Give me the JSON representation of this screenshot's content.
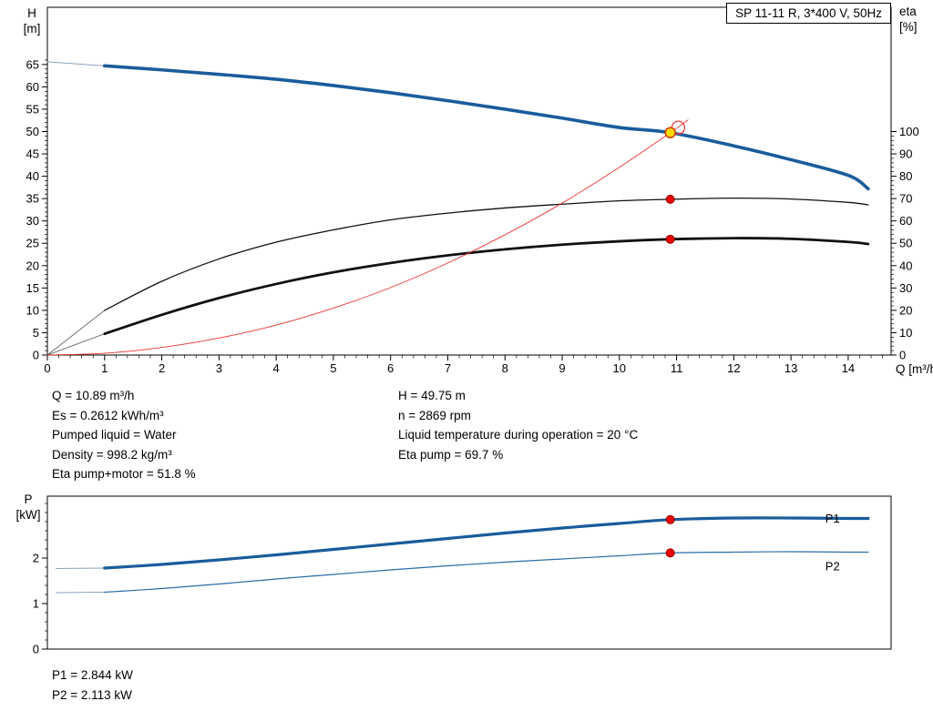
{
  "title_box": "SP 11-11 R, 3*400 V, 50Hz",
  "axis_labels": {
    "h_top": "H",
    "h_bottom": "[m]",
    "eta_top": "eta",
    "eta_bottom": "[%]",
    "q": "Q [m³/h]",
    "p_top": "P",
    "p_bottom": "[kW]"
  },
  "annotations": {
    "left": [
      "Q = 10.89 m³/h",
      "Es = 0.2612 kWh/m³",
      "Pumped liquid = Water",
      "Density = 998.2 kg/m³",
      "Eta pump+motor = 51.8 %"
    ],
    "right": [
      "H = 49.75 m",
      "n = 2869 rpm",
      "Liquid temperature during operation = 20 °C",
      "Eta pump = 69.7 %"
    ]
  },
  "power_annotations": [
    "P1 = 2.844 kW",
    "P2 = 2.113 kW"
  ],
  "colors": {
    "curve_blue": "#1a5c9c",
    "curve_black": "#111111",
    "system_red": "#ee3333",
    "marker_red": "#e80000",
    "duty_yellow": "#ffd800"
  },
  "chart_data": [
    {
      "type": "line",
      "title": "SP 11-11 R, 3*400 V, 50Hz",
      "xlabel": "Q [m³/h]",
      "ylabel_left": "H [m]",
      "ylabel_right": "eta [%]",
      "x_range": [
        0,
        14.75
      ],
      "y_range": [
        0,
        77.8
      ],
      "right_ratio": 2,
      "x_major_ticks": [
        0,
        1,
        2,
        3,
        4,
        5,
        6,
        7,
        8,
        9,
        10,
        11,
        12,
        13,
        14
      ],
      "x_minor_step": 0.2,
      "y_major_ticks": [
        0,
        5,
        10,
        15,
        20,
        25,
        30,
        35,
        40,
        45,
        50,
        55,
        60,
        65
      ],
      "y_minor_step": 1,
      "y_minor_max": 66,
      "right_major_ticks": [
        0,
        10,
        20,
        30,
        40,
        50,
        60,
        70,
        80,
        90,
        100
      ],
      "right_minor_step": 2,
      "duty_point": {
        "q": 10.89,
        "h": 49.75,
        "eta_pump": 69.7,
        "eta_pump_motor": 51.8
      },
      "series": [
        {
          "name": "qh-lead",
          "axis": "left",
          "color": "#8da3b8",
          "width": 1,
          "points": [
            [
              0,
              65.6
            ],
            [
              1,
              64.7
            ]
          ]
        },
        {
          "name": "qh-curve",
          "axis": "left",
          "color": "#1a5c9c",
          "width": 3.6,
          "points": [
            [
              1,
              64.7
            ],
            [
              2,
              63.8
            ],
            [
              3,
              62.8
            ],
            [
              4,
              61.7
            ],
            [
              5,
              60.3
            ],
            [
              6,
              58.7
            ],
            [
              7,
              56.9
            ],
            [
              8,
              55.0
            ],
            [
              9,
              53.0
            ],
            [
              10,
              50.9
            ],
            [
              10.89,
              49.75
            ],
            [
              12,
              46.8
            ],
            [
              13,
              43.7
            ],
            [
              14,
              40.2
            ],
            [
              14.35,
              37.2
            ]
          ]
        },
        {
          "name": "eta-pump-lead",
          "axis": "right",
          "color": "#555555",
          "width": 0.8,
          "points": [
            [
              0,
              0
            ],
            [
              1,
              20
            ]
          ]
        },
        {
          "name": "eta-pump-curve",
          "axis": "right",
          "color": "#111111",
          "width": 1.3,
          "points": [
            [
              1,
              20
            ],
            [
              2,
              33
            ],
            [
              3,
              43
            ],
            [
              4,
              50.5
            ],
            [
              5,
              56
            ],
            [
              6,
              60.5
            ],
            [
              7,
              63.5
            ],
            [
              8,
              65.8
            ],
            [
              9,
              67.5
            ],
            [
              10,
              69
            ],
            [
              10.89,
              69.7
            ],
            [
              12,
              70.2
            ],
            [
              13,
              69.8
            ],
            [
              14,
              68.3
            ],
            [
              14.35,
              67.2
            ]
          ]
        },
        {
          "name": "eta-pump-motor-lead",
          "axis": "right",
          "color": "#555555",
          "width": 0.8,
          "points": [
            [
              0,
              0
            ],
            [
              1,
              9.5
            ]
          ]
        },
        {
          "name": "eta-pump-motor-curve",
          "axis": "right",
          "color": "#111111",
          "width": 2.8,
          "points": [
            [
              1,
              9.5
            ],
            [
              2,
              18
            ],
            [
              3,
              25.5
            ],
            [
              4,
              31.8
            ],
            [
              5,
              37
            ],
            [
              6,
              41.2
            ],
            [
              7,
              44.6
            ],
            [
              8,
              47.3
            ],
            [
              9,
              49.4
            ],
            [
              10,
              50.9
            ],
            [
              10.89,
              51.8
            ],
            [
              12,
              52.3
            ],
            [
              13,
              52.0
            ],
            [
              14,
              50.6
            ],
            [
              14.35,
              49.7
            ]
          ]
        },
        {
          "name": "system-curve",
          "axis": "left",
          "color": "#ee3333",
          "width": 0.9,
          "points": [
            [
              0,
              0
            ],
            [
              1,
              0.4
            ],
            [
              2,
              1.7
            ],
            [
              3,
              3.8
            ],
            [
              4,
              6.7
            ],
            [
              5,
              10.5
            ],
            [
              6,
              15.1
            ],
            [
              7,
              20.6
            ],
            [
              8,
              26.9
            ],
            [
              9,
              34.0
            ],
            [
              10,
              42.0
            ],
            [
              10.89,
              49.75
            ],
            [
              11.2,
              52.6
            ]
          ]
        }
      ],
      "markers": [
        {
          "name": "qh-intersection-ring",
          "axis": "left",
          "q": 11.03,
          "v": 50.9,
          "r": 7,
          "fill": "none",
          "stroke": "#ff2a2a",
          "stroke_width": 1.2
        },
        {
          "name": "duty-point-dot",
          "axis": "left",
          "q": 10.89,
          "v": 49.75,
          "r": 5.5,
          "fill": "#ffd800",
          "stroke": "#d43a00",
          "stroke_width": 1.5
        },
        {
          "name": "eta-pump-dot",
          "axis": "right",
          "q": 10.89,
          "v": 69.7,
          "r": 4.5,
          "fill": "#e80000",
          "stroke": "#9a0000",
          "stroke_width": 1
        },
        {
          "name": "eta-pump-motor-dot",
          "axis": "right",
          "q": 10.89,
          "v": 51.8,
          "r": 4.5,
          "fill": "#e80000",
          "stroke": "#9a0000",
          "stroke_width": 1
        }
      ]
    },
    {
      "type": "line",
      "xlabel": "",
      "ylabel_left": "P [kW]",
      "x_range": [
        0,
        14.75
      ],
      "y_range": [
        0,
        3.36
      ],
      "y_major_ticks": [
        0,
        1,
        2
      ],
      "y_minor_step": 0.2,
      "y_minor_max": 3.2,
      "p1": 2.844,
      "p2": 2.113,
      "series": [
        {
          "name": "p1-lead",
          "axis": "left",
          "color": "#8da3b8",
          "width": 1,
          "points": [
            [
              0.15,
              1.77
            ],
            [
              1,
              1.78
            ]
          ]
        },
        {
          "name": "p1-curve",
          "axis": "left",
          "color": "#1a5c9c",
          "width": 3.2,
          "points": [
            [
              1,
              1.78
            ],
            [
              2,
              1.86
            ],
            [
              3,
              1.96
            ],
            [
              4,
              2.07
            ],
            [
              5,
              2.19
            ],
            [
              6,
              2.31
            ],
            [
              7,
              2.43
            ],
            [
              8,
              2.55
            ],
            [
              9,
              2.66
            ],
            [
              10,
              2.76
            ],
            [
              10.89,
              2.844
            ],
            [
              12,
              2.88
            ],
            [
              13,
              2.88
            ],
            [
              14,
              2.87
            ],
            [
              14.35,
              2.87
            ]
          ]
        },
        {
          "name": "p2-lead",
          "axis": "left",
          "color": "#8da3b8",
          "width": 0.9,
          "points": [
            [
              0.15,
              1.24
            ],
            [
              1,
              1.25
            ]
          ]
        },
        {
          "name": "p2-curve",
          "axis": "left",
          "color": "#2a6ca8",
          "width": 1.2,
          "points": [
            [
              1,
              1.25
            ],
            [
              2,
              1.33
            ],
            [
              3,
              1.43
            ],
            [
              4,
              1.54
            ],
            [
              5,
              1.64
            ],
            [
              6,
              1.74
            ],
            [
              7,
              1.83
            ],
            [
              8,
              1.91
            ],
            [
              9,
              1.98
            ],
            [
              10,
              2.05
            ],
            [
              10.89,
              2.113
            ],
            [
              12,
              2.13
            ],
            [
              13,
              2.14
            ],
            [
              14,
              2.13
            ],
            [
              14.35,
              2.13
            ]
          ]
        }
      ],
      "markers": [
        {
          "name": "p1-dot",
          "axis": "left",
          "q": 10.89,
          "v": 2.844,
          "r": 4.5,
          "fill": "#e80000",
          "stroke": "#9a0000",
          "stroke_width": 1
        },
        {
          "name": "p2-dot",
          "axis": "left",
          "q": 10.89,
          "v": 2.113,
          "r": 4.5,
          "fill": "#e80000",
          "stroke": "#9a0000",
          "stroke_width": 1
        }
      ],
      "curve_labels": [
        {
          "text": "P1",
          "q": 13.6,
          "v": 2.78,
          "color": "#1a5c9c"
        },
        {
          "text": "P2",
          "q": 13.6,
          "v": 1.73,
          "color": "#1a5c9c"
        }
      ]
    }
  ]
}
